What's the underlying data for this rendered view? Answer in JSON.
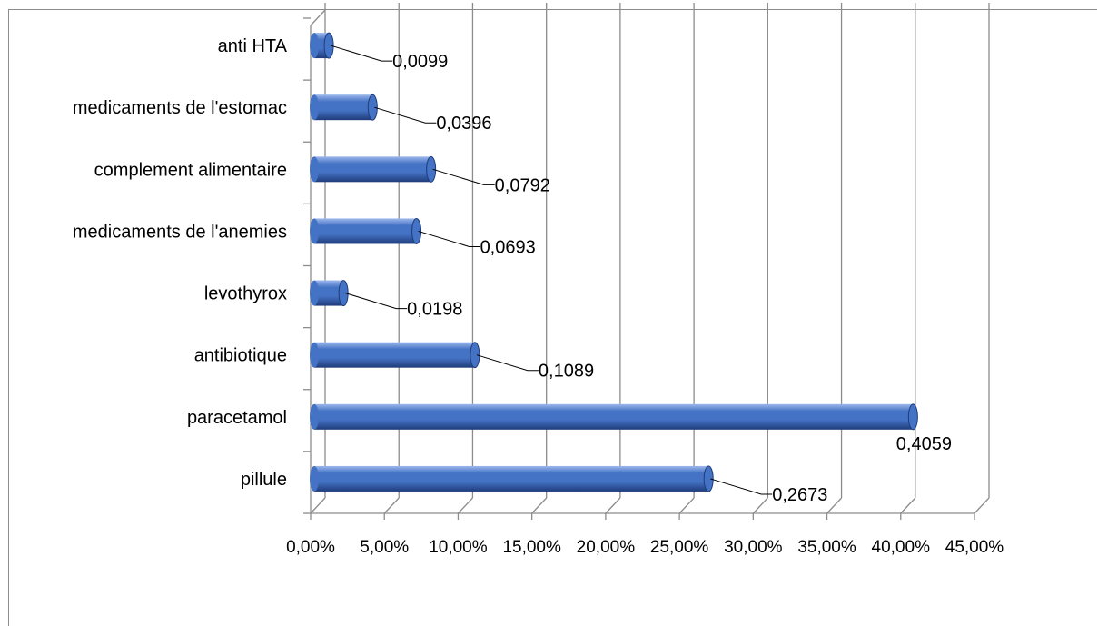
{
  "chart_data": {
    "type": "bar",
    "orientation": "horizontal",
    "style": "3d-cylinder",
    "categories": [
      "pillule",
      "paracetamol",
      "antibiotique",
      "levothyrox",
      "medicaments de l'anemies",
      "complement alimentaire",
      "medicaments de l'estomac",
      "anti HTA"
    ],
    "values": [
      0.2673,
      0.4059,
      0.1089,
      0.0198,
      0.0693,
      0.0792,
      0.0396,
      0.0099
    ],
    "data_labels": [
      "0,2673",
      "0,4059",
      "0,1089",
      "0,0198",
      "0,0693",
      "0,0792",
      "0,0396",
      "0,0099"
    ],
    "x_ticks": [
      0,
      0.05,
      0.1,
      0.15,
      0.2,
      0.25,
      0.3,
      0.35,
      0.4,
      0.45
    ],
    "x_tick_labels": [
      "0,00%",
      "5,00%",
      "10,00%",
      "15,00%",
      "20,00%",
      "25,00%",
      "30,00%",
      "35,00%",
      "40,00%",
      "45,00%"
    ],
    "xlim": [
      0,
      0.45
    ],
    "title": "",
    "xlabel": "",
    "ylabel": "",
    "grid": true,
    "legend": false,
    "colors": {
      "bar": "#4472c4",
      "bar_dark": "#1f3c7a",
      "bar_light": "#9db8ec",
      "grid": "#8c8c8c"
    }
  }
}
